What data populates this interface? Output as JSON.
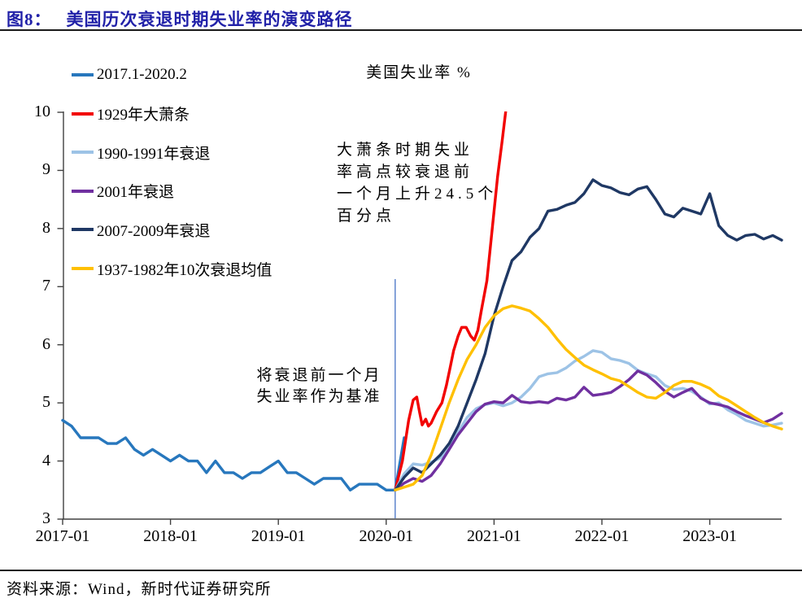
{
  "header": {
    "figure_label": "图8：",
    "title": "美国历次衰退时期失业率的演变路径"
  },
  "footer": {
    "source": "资料来源：Wind，新时代证券研究所"
  },
  "colors": {
    "title_blue": "#2121A8",
    "axis": "#404040",
    "baseline_line": "#4472C4"
  },
  "chart_data": {
    "type": "line",
    "title": "美国失业率 %",
    "ylim": [
      3,
      10
    ],
    "y_ticks": [
      3,
      4,
      5,
      6,
      7,
      8,
      9,
      10
    ],
    "x_tick_labels": [
      "2017-01",
      "2018-01",
      "2019-01",
      "2020-01",
      "2021-01",
      "2022-01",
      "2023-01"
    ],
    "x_tick_interval_months": 12,
    "grid": false,
    "legend_position": "upper-left",
    "baseline_month_index": 37,
    "annotations": {
      "depression_note": "大萧条时期失业\n率高点较衰退前\n一个月上升24.5个\n百分点",
      "baseline_note": "将衰退前一个月\n失业率作为基准"
    },
    "series": [
      {
        "name": "2017.1-2020.2",
        "color": "#2777BD",
        "align": "calendar",
        "values": [
          4.7,
          4.6,
          4.4,
          4.4,
          4.4,
          4.3,
          4.3,
          4.4,
          4.2,
          4.1,
          4.2,
          4.1,
          4.0,
          4.1,
          4.0,
          4.0,
          3.8,
          4.0,
          3.8,
          3.8,
          3.7,
          3.8,
          3.8,
          3.9,
          4.0,
          3.8,
          3.8,
          3.7,
          3.6,
          3.7,
          3.7,
          3.7,
          3.5,
          3.6,
          3.6,
          3.6,
          3.5,
          3.5,
          4.4
        ]
      },
      {
        "name": "1929年大萧条",
        "color": "#F20000",
        "align": "baseline",
        "points": [
          [
            0,
            3.5
          ],
          [
            0.8,
            4.0
          ],
          [
            1.5,
            4.7
          ],
          [
            2,
            5.05
          ],
          [
            2.4,
            5.1
          ],
          [
            2.7,
            4.85
          ],
          [
            3,
            4.62
          ],
          [
            3.4,
            4.72
          ],
          [
            3.7,
            4.6
          ],
          [
            4,
            4.65
          ],
          [
            4.6,
            4.85
          ],
          [
            5.2,
            5.0
          ],
          [
            5.7,
            5.3
          ],
          [
            6.1,
            5.6
          ],
          [
            6.5,
            5.9
          ],
          [
            7,
            6.15
          ],
          [
            7.4,
            6.3
          ],
          [
            7.9,
            6.3
          ],
          [
            8.4,
            6.15
          ],
          [
            8.8,
            6.08
          ],
          [
            9.2,
            6.25
          ],
          [
            9.6,
            6.6
          ],
          [
            10.2,
            7.1
          ],
          [
            10.6,
            7.7
          ],
          [
            11,
            8.3
          ],
          [
            11.4,
            8.9
          ],
          [
            11.9,
            9.5
          ],
          [
            12.4,
            10.15
          ]
        ]
      },
      {
        "name": "1990-1991年衰退",
        "color": "#9DC3E6",
        "align": "baseline",
        "values": [
          3.5,
          3.78,
          3.95,
          3.93,
          3.98,
          4.05,
          4.22,
          4.5,
          4.75,
          4.9,
          4.97,
          5.0,
          4.95,
          5.0,
          5.1,
          5.25,
          5.45,
          5.5,
          5.52,
          5.6,
          5.72,
          5.8,
          5.9,
          5.87,
          5.76,
          5.73,
          5.68,
          5.56,
          5.5,
          5.45,
          5.3,
          5.23,
          5.25,
          5.2,
          5.1,
          4.98,
          5.0,
          4.88,
          4.8,
          4.7,
          4.65,
          4.6,
          4.62,
          4.65
        ]
      },
      {
        "name": "2001年衰退",
        "color": "#7030A0",
        "align": "baseline",
        "values": [
          3.5,
          3.62,
          3.7,
          3.65,
          3.75,
          3.95,
          4.2,
          4.45,
          4.65,
          4.85,
          4.98,
          5.02,
          5.0,
          5.13,
          5.02,
          5.0,
          5.02,
          5.0,
          5.08,
          5.05,
          5.1,
          5.27,
          5.13,
          5.15,
          5.18,
          5.28,
          5.4,
          5.55,
          5.48,
          5.35,
          5.2,
          5.1,
          5.18,
          5.25,
          5.08,
          5.0,
          4.97,
          4.93,
          4.85,
          4.78,
          4.72,
          4.66,
          4.72,
          4.82
        ]
      },
      {
        "name": "2007-2009年衰退",
        "color": "#1F3864",
        "align": "baseline",
        "values": [
          3.5,
          3.72,
          3.88,
          3.8,
          3.95,
          4.1,
          4.3,
          4.6,
          5.0,
          5.4,
          5.85,
          6.5,
          7.0,
          7.45,
          7.6,
          7.85,
          8.0,
          8.3,
          8.33,
          8.4,
          8.45,
          8.6,
          8.84,
          8.74,
          8.7,
          8.62,
          8.58,
          8.68,
          8.72,
          8.5,
          8.25,
          8.2,
          8.35,
          8.3,
          8.25,
          8.6,
          8.05,
          7.88,
          7.8,
          7.88,
          7.9,
          7.82,
          7.88,
          7.8
        ]
      },
      {
        "name": "1937-1982年10次衰退均值",
        "color": "#FFC000",
        "align": "baseline",
        "values": [
          3.5,
          3.55,
          3.6,
          3.75,
          4.1,
          4.55,
          5.0,
          5.4,
          5.75,
          6.0,
          6.3,
          6.5,
          6.62,
          6.67,
          6.63,
          6.58,
          6.45,
          6.3,
          6.1,
          5.92,
          5.78,
          5.65,
          5.57,
          5.5,
          5.42,
          5.38,
          5.28,
          5.18,
          5.1,
          5.08,
          5.18,
          5.3,
          5.37,
          5.37,
          5.32,
          5.25,
          5.12,
          5.05,
          4.95,
          4.85,
          4.75,
          4.66,
          4.6,
          4.55
        ]
      }
    ]
  }
}
